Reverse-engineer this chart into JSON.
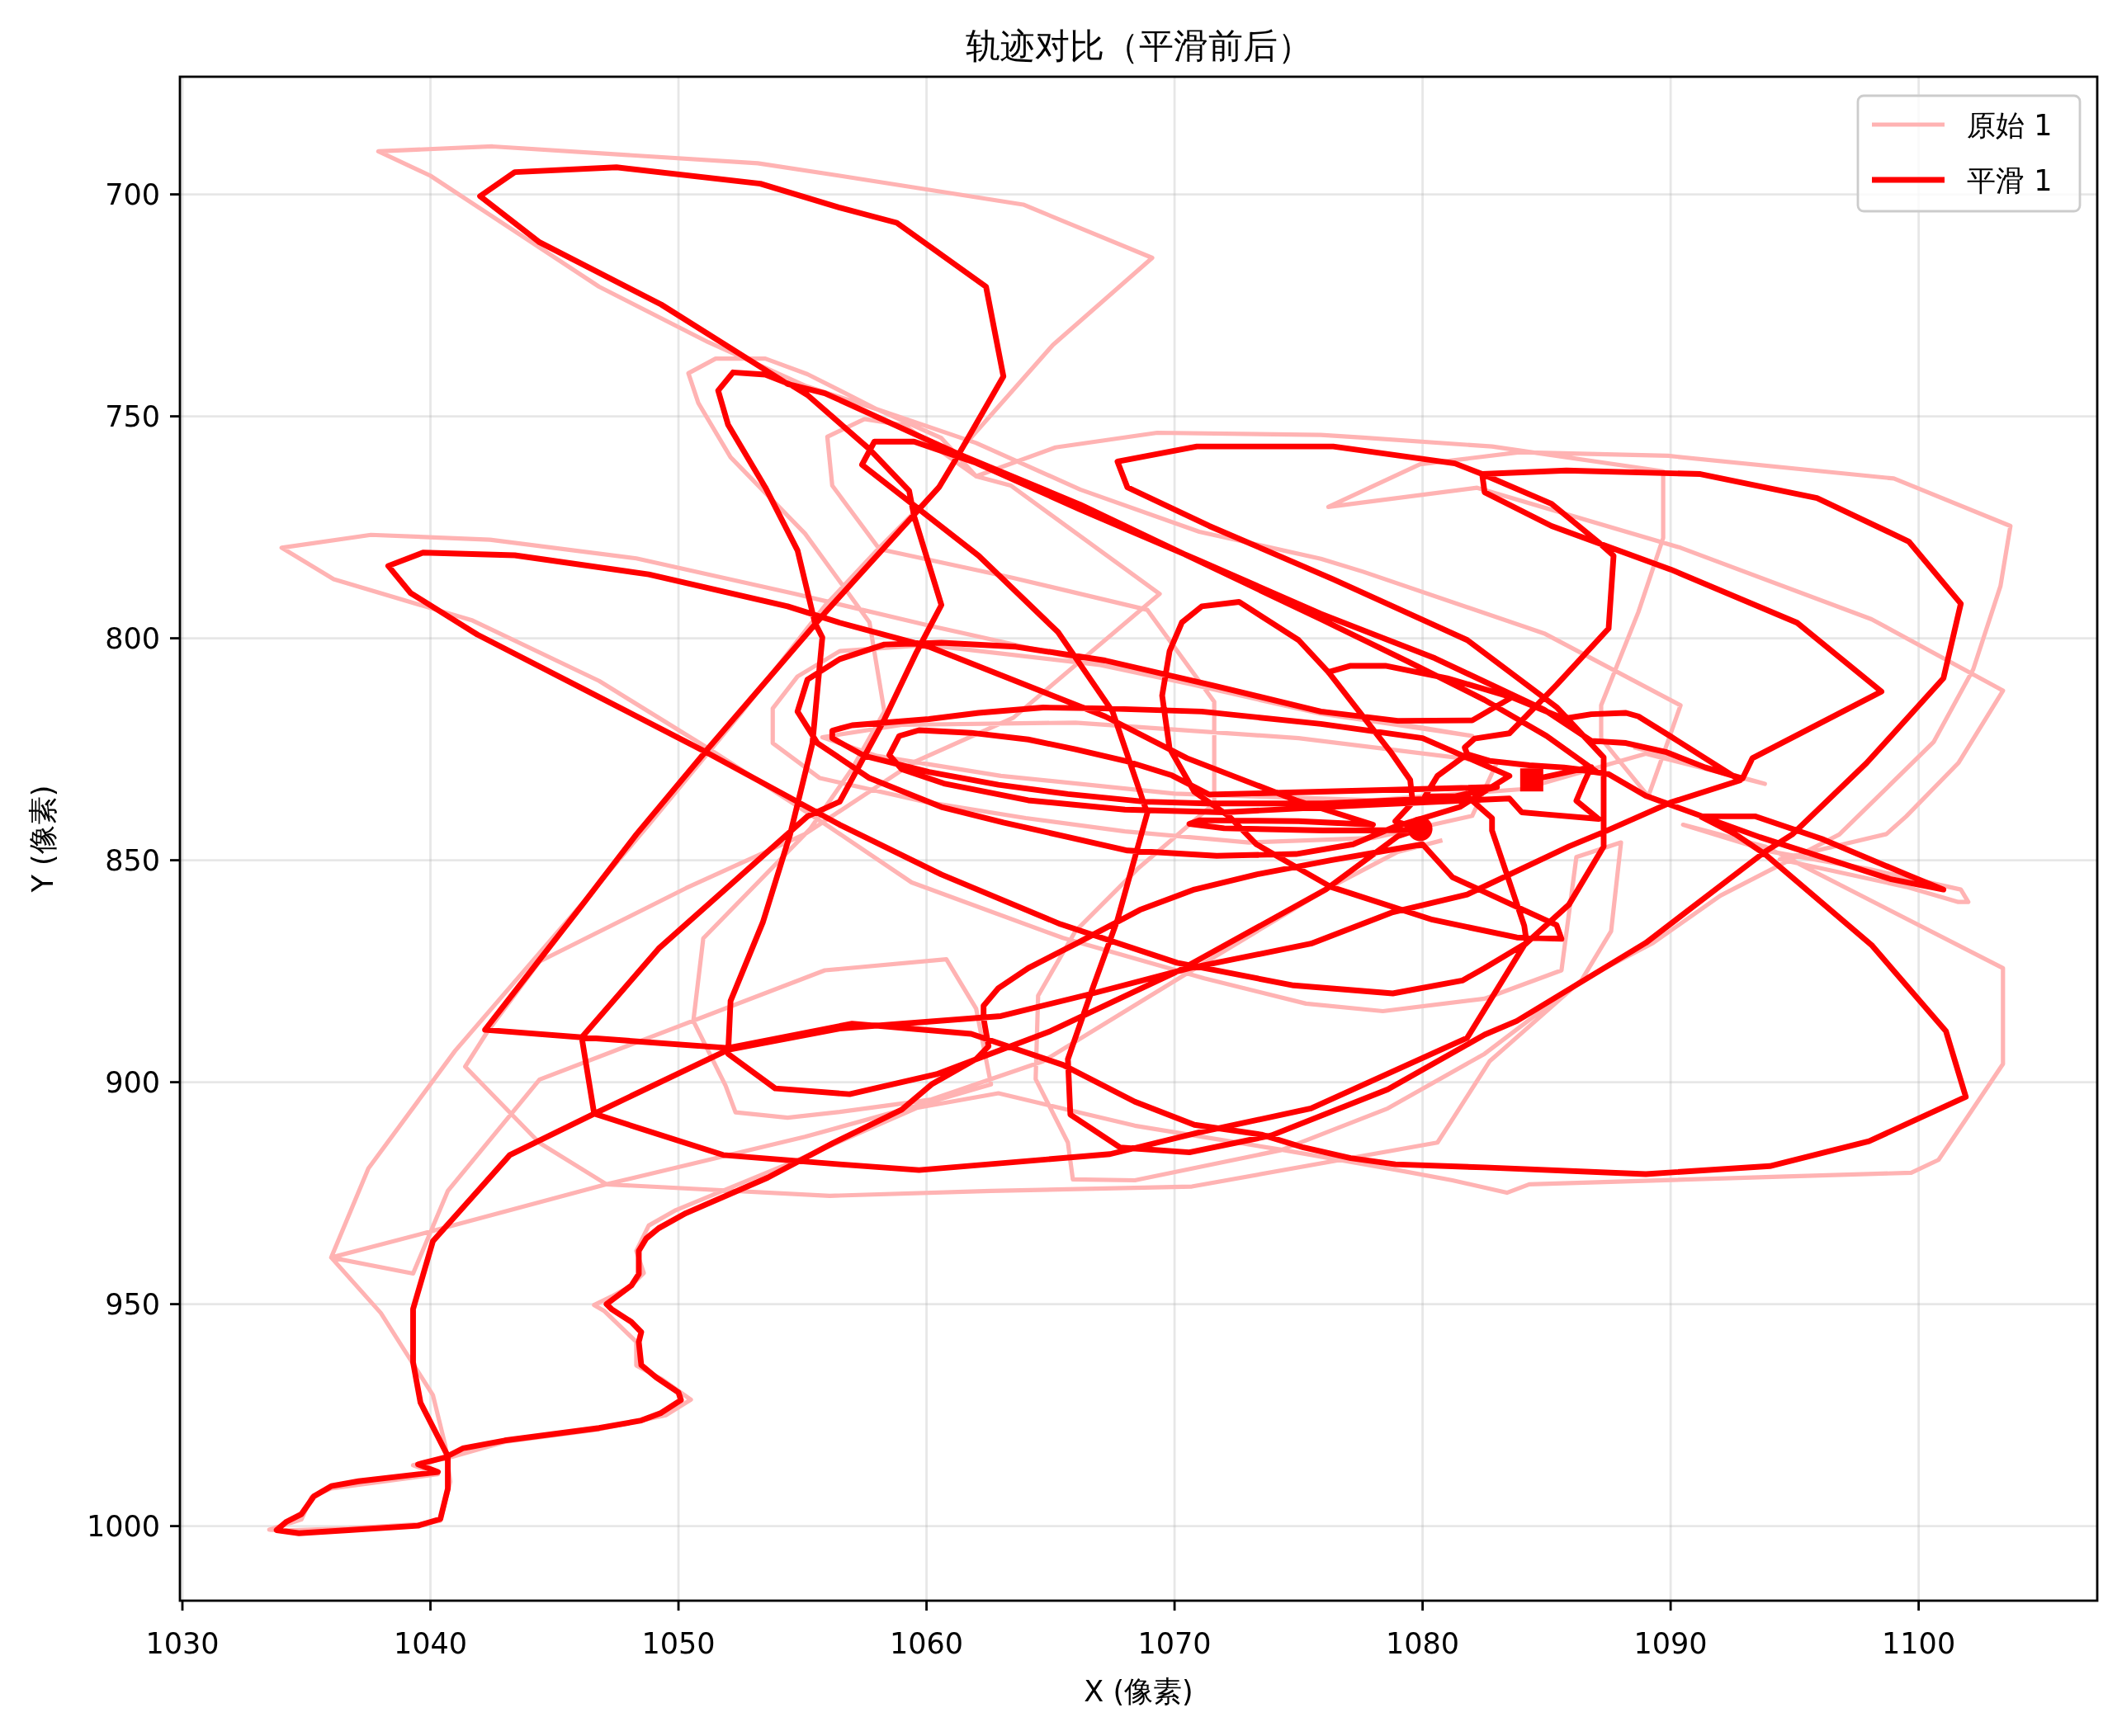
{
  "chart_data": {
    "type": "line",
    "title": "轨迹对比（平滑前后）",
    "xlabel": "X (像素)",
    "ylabel": "Y (像素)",
    "xlim": [
      1029.9,
      1107.2
    ],
    "ylim": [
      1016.8,
      673.5
    ],
    "xticks": [
      1030,
      1040,
      1050,
      1060,
      1070,
      1080,
      1090,
      1100
    ],
    "yticks": [
      700,
      750,
      800,
      850,
      900,
      950,
      1000
    ],
    "grid": true,
    "legend": "top right",
    "series": [
      {
        "name": "原始 1",
        "color": "#ffb3b3",
        "x": [
          1080.8,
          1079.0,
          1076.3,
          1070.2,
          1064.7,
          1060.2,
          1056.5,
          1054.4,
          1052.3,
          1051.9,
          1050.6,
          1051.0,
          1055.3,
          1057.0,
          1058.3,
          1057.7,
          1055.1,
          1052.1,
          1050.8,
          1050.4,
          1051.5,
          1053.5,
          1055.2,
          1058.0,
          1062.0,
          1066.2,
          1071.0,
          1075.9,
          1077.6,
          1084.9,
          1090.4,
          1089.9,
          1089.1,
          1087.2,
          1087.2,
          1088.7,
          1089.7,
          1089.7,
          1082.8,
          1077.6,
          1075.9,
          1069.3,
          1065.2,
          1062.0,
          1060.6,
          1058.0,
          1055.1,
          1051.2,
          1046.8,
          1040.0,
          1037.9,
          1042.5,
          1053.2,
          1056.5,
          1063.9,
          1069.1,
          1065.1,
          1061.4,
          1060.5,
          1058.1,
          1055.9,
          1052.5,
          1048.8,
          1046.2,
          1041.0,
          1037.5,
          1036.0,
          1040.1,
          1047.1,
          1055.1,
          1060.2,
          1062.6,
          1062.0,
          1060.8,
          1055.9,
          1044.4,
          1040.7,
          1039.3,
          1036.0,
          1038.0,
          1040.1,
          1040.6,
          1040.8,
          1040.4,
          1039.5,
          1036.7,
          1034.0,
          1033.5,
          1034.8,
          1035.2,
          1036.0,
          1040.3,
          1039.3,
          1040.8,
          1043.0,
          1046.8,
          1049.5,
          1050.5,
          1049.3,
          1048.3,
          1048.3,
          1047.0,
          1046.6,
          1047.3,
          1048.1,
          1048.6,
          1048.3,
          1048.8,
          1049.9,
          1054.9,
          1059.6,
          1062.9,
          1068.4,
          1074.4,
          1078.9,
          1081.2,
          1083.4,
          1084.3,
          1099.7,
          1100.8,
          1101.9,
          1103.4,
          1103.4,
          1093.8,
          1090.5,
          1094.0,
          1098.0,
          1101.7,
          1102.0,
          1101.6,
          1099.5,
          1094.4,
          1098.7,
          1099.5,
          1101.6,
          1103.4,
          1098.1,
          1090.4,
          1082.2,
          1076.2,
          1079.9,
          1083.9,
          1089.9,
          1099.0,
          1103.7,
          1103.3,
          1102.2,
          1100.6,
          1096.8,
          1092.0,
          1089.3,
          1086.4,
          1082.7,
          1081.2,
          1080.6,
          1070.7,
          1062.6,
          1056.1,
          1047.1,
          1044.4,
          1041.4,
          1042.3,
          1044.4,
          1050.3,
          1055.1,
          1059.5,
          1063.5,
          1069.4,
          1063.4,
          1062.0,
          1059.1,
          1057.5,
          1056.0,
          1056.2,
          1058.1,
          1063.5,
          1068.9,
          1071.6,
          1071.6,
          1068.5,
          1066.0,
          1064.5,
          1064.4,
          1065.7,
          1065.9,
          1068.4,
          1074.3,
          1078.6,
          1082.5,
          1086.4,
          1087.6,
          1088.0,
          1086.2,
          1085.6,
          1082.5,
          1078.4,
          1075.3,
          1071.2,
          1065.5,
          1059.4,
          1055.9,
          1051.2,
          1046.8,
          1041.7,
          1036.1,
          1034.0,
          1037.6,
          1042.4,
          1048.3,
          1054.7,
          1060.0,
          1068.0,
          1075.9,
          1082.0,
          1075.0,
          1067.0,
          1060.0,
          1056.5,
          1054.8,
          1053.8,
          1053.8,
          1055.7,
          1060.0,
          1064.0,
          1068.0,
          1073.0,
          1078.0,
          1082.0,
          1083.0,
          1075.0,
          1066.0,
          1059.0,
          1055.8,
          1058.0,
          1063.0,
          1070.0,
          1078.0,
          1084.0,
          1089.0,
          1093.8,
          1088.5
        ],
        "values": [
          845.5,
          848.1,
          856.0,
          876.5,
          895.3,
          903.9,
          906.7,
          908.0,
          906.8,
          900.8,
          886.2,
          867.6,
          843.0,
          829.4,
          816.5,
          796.4,
          776.4,
          759.2,
          747.0,
          740.3,
          737.0,
          737.0,
          740.5,
          748.4,
          756.0,
          766.5,
          776.0,
          782.1,
          785.0,
          798.9,
          815.1,
          823.1,
          835.6,
          822.6,
          815.1,
          794.1,
          777.4,
          762.4,
          756.8,
          754.8,
          754.2,
          753.7,
          757.0,
          763.5,
          754.9,
          748.4,
          743.1,
          733.3,
          720.8,
          695.8,
          690.3,
          689.2,
          693.0,
          695.8,
          702.3,
          714.3,
          733.9,
          757.3,
          766.0,
          779.6,
          792.7,
          817.0,
          842.0,
          859.2,
          892.9,
          919.4,
          939.5,
          933.5,
          923.0,
          912.3,
          904.4,
          900.5,
          883.4,
          872.3,
          874.8,
          899.4,
          924.5,
          943.1,
          939.5,
          952.0,
          970.5,
          981.9,
          990.0,
          998.8,
          999.6,
          1000.5,
          1001.0,
          1000.8,
          998.5,
          993.5,
          991.5,
          988.3,
          986.3,
          984.5,
          981.0,
          978.2,
          975.0,
          971.5,
          966.8,
          963.8,
          958.5,
          951.5,
          950.2,
          948.3,
          945.8,
          943.0,
          938.0,
          932.3,
          928.8,
          917.3,
          905.8,
          902.5,
          909.8,
          915.3,
          919.7,
          922.1,
          924.9,
          923.0,
          920.4,
          917.5,
          908.4,
          895.9,
          874.3,
          846.9,
          842.0,
          848.0,
          852.0,
          856.6,
          859.4,
          859.4,
          856.0,
          849.8,
          844.1,
          840.1,
          828.1,
          811.8,
          795.7,
          779.6,
          766.1,
          770.4,
          760.8,
          758.1,
          758.9,
          764.0,
          774.7,
          788.2,
          807.0,
          823.4,
          844.2,
          858.0,
          868.6,
          877.1,
          895.3,
          908.4,
          913.6,
          923.5,
          924.5,
          925.6,
          923.0,
          913.7,
          896.5,
          888.6,
          872.8,
          856.3,
          844.1,
          827.9,
          817.9,
          790.0,
          765.6,
          763.5,
          752.0,
          750.6,
          754.6,
          765.6,
          779.9,
          786.4,
          793.6,
          814.3,
          837.2,
          852.0,
          866.0,
          880.5,
          899.3,
          913.6,
          921.9,
          922.1,
          915.3,
          905.9,
          893.6,
          877.1,
          866.0,
          846.0,
          849.3,
          874.8,
          881.2,
          884.0,
          882.3,
          876.6,
          867.5,
          855.0,
          841.8,
          824.8,
          809.6,
          796.0,
          786.7,
          779.6,
          776.7,
          777.8,
          782.0,
          790.0,
          797.0,
          807.0,
          817.0,
          822.0,
          815.5,
          806.0,
          801.5,
          802.9,
          808.6,
          815.8,
          823.6,
          831.5,
          836.9,
          840.5,
          843.5,
          846.0,
          845.0,
          840.0,
          828.0,
          822.5,
          819.0,
          819.5,
          822.3,
          826.5,
          831.0,
          835.0,
          836.5,
          834.0,
          826.0,
          832.8,
          824.5
        ]
      },
      {
        "name": "平滑 1",
        "color": "#ff0000",
        "x": [
          1079.9,
          1079.0,
          1076.1,
          1070.2,
          1065.0,
          1060.4,
          1056.9,
          1053.9,
          1052.0,
          1052.1,
          1053.4,
          1054.5,
          1055.4,
          1055.8,
          1055.5,
          1054.8,
          1053.5,
          1052.0,
          1051.6,
          1052.2,
          1053.5,
          1054.5,
          1055.2,
          1057.7,
          1059.3,
          1059.5,
          1060.6,
          1059.6,
          1058.3,
          1056.5,
          1055.2,
          1049.2,
          1046.1,
          1046.6,
          1051.8,
          1056.5,
          1059.7,
          1067.4,
          1071.0,
          1075.5,
          1081.8,
          1084.1,
          1085.9,
          1087.3,
          1087.3,
          1085.4,
          1081.8,
          1076.4,
          1071.4,
          1068.1,
          1067.7,
          1070.9,
          1076.4,
          1081.3,
          1082.4,
          1085.8,
          1091.2,
          1095.9,
          1099.6,
          1101.7,
          1101.0,
          1097.9,
          1094.9,
          1093.8,
          1089.0,
          1083.8,
          1082.5,
          1078.6,
          1073.9,
          1070.6,
          1067.8,
          1065.8,
          1065.7,
          1066.7,
          1067.7,
          1068.9,
          1067.5,
          1065.3,
          1062.1,
          1057.4,
          1057.9,
          1059.5,
          1062.0,
          1066.2,
          1071.0,
          1075.9,
          1080.5,
          1084.9,
          1086.8,
          1088.2,
          1089.8,
          1091.4,
          1092.9,
          1093.3,
          1098.5,
          1095.1,
          1090.0,
          1085.2,
          1082.5,
          1082.4,
          1085.2,
          1087.1,
          1087.7,
          1087.5,
          1085.4,
          1083.5,
          1082.1,
          1081.7,
          1081.8,
          1082.7,
          1084.3,
          1085.7,
          1087.5,
          1089.0,
          1093.6,
          1098.9,
          1101.0,
          1099.5,
          1096.1,
          1093.4,
          1091.2,
          1092.6,
          1093.8,
          1098.1,
          1101.1,
          1101.9,
          1098.0,
          1094.0,
          1089.0,
          1082.5,
          1078.9,
          1077.1,
          1075.2,
          1073.5,
          1070.8,
          1068.4,
          1065.5,
          1061.8,
          1057.0,
          1052.0,
          1046.1,
          1042.2,
          1046.2,
          1048.3,
          1051.2,
          1055.9,
          1060.5,
          1061.2,
          1063.1,
          1062.4,
          1058.8,
          1056.5,
          1053.3,
          1047.5,
          1043.4,
          1042.0,
          1044.4,
          1049.3,
          1054.4,
          1055.9,
          1061.3,
          1066.2,
          1075.9,
          1079.4,
          1082.5,
          1085.0,
          1087.0,
          1085.7,
          1084.3,
          1082.7,
          1081.8,
          1080.6,
          1080.1,
          1081.8,
          1082.8,
          1082.8,
          1084.1,
          1084.2,
          1082.5,
          1081.6,
          1078.8,
          1074.8,
          1070.1,
          1065.4,
          1060.6,
          1056.5,
          1051.2,
          1046.3,
          1041.9,
          1039.2,
          1038.3,
          1039.7,
          1043.4,
          1048.8,
          1054.4,
          1056.5,
          1060.1,
          1067.2,
          1070.5,
          1074.9,
          1078.0,
          1075.0,
          1071.0,
          1070.6,
          1072.0,
          1076.0,
          1080.0,
          1078.9,
          1079.6,
          1079.5,
          1078.7,
          1076.2,
          1075.0,
          1072.6,
          1071.1,
          1070.3,
          1069.8,
          1069.5,
          1069.8,
          1070.8,
          1072.2,
          1073.3,
          1076.3,
          1080.4,
          1083.8,
          1085.6,
          1085.4,
          1083.6,
          1081.2,
          1080.0,
          1076.3,
          1073.3,
          1070.8,
          1068.6,
          1066.1,
          1064.1,
          1062.9,
          1062.3,
          1062.3,
          1062.5,
          1062.0,
          1060.2,
          1059.0,
          1056.2,
          1053.6,
          1050.3,
          1049.2,
          1048.7,
          1048.4,
          1048.4,
          1048.1,
          1047.5,
          1047.1,
          1047.3,
          1048.1,
          1048.5,
          1048.4,
          1048.5,
          1049.1,
          1050.0,
          1050.1,
          1049.3,
          1048.5,
          1046.8,
          1043.0,
          1041.3,
          1040.6,
          1039.5,
          1040.3,
          1037.1,
          1036.0,
          1035.3,
          1034.8,
          1034.2,
          1033.8,
          1034.7,
          1036.7,
          1039.5,
          1040.4,
          1040.7,
          1040.7,
          1039.6,
          1039.3,
          1039.3,
          1040.1,
          1043.2,
          1046.6,
          1052.0,
          1056.5,
          1063.0,
          1066.7,
          1070.6,
          1075.5,
          1078.8,
          1081.8,
          1085.9,
          1087.4,
          1090.0,
          1092.8,
          1090.0,
          1088.7,
          1088.2,
          1086.8,
          1085.7,
          1083.6,
          1081.0,
          1078.5,
          1077.1,
          1076.2,
          1077.1,
          1078.5,
          1081.0,
          1083.6,
          1082.0,
          1079.0,
          1075.9,
          1071.6,
          1067.2,
          1063.6,
          1060.6,
          1058.3,
          1056.5,
          1055.2,
          1054.8,
          1055.6,
          1057.7,
          1060.6,
          1063.1,
          1068.1,
          1071.7,
          1074.9,
          1077.2,
          1078.9,
          1081.5,
          1083.5,
          1080.0,
          1075.9,
          1071.1,
          1067.2,
          1064.7,
          1062.1,
          1060.1,
          1057.0,
          1056.2,
          1056.2,
          1057.5,
          1060.1,
          1062.9,
          1065.7,
          1068.8,
          1071.3,
          1076.0,
          1081.0,
          1083.0,
          1071.4,
          1069.9,
          1068.0,
          1066.0,
          1064.1,
          1061.8,
          1059.7,
          1058.9,
          1058.5,
          1059.0,
          1060.7,
          1064.1,
          1068.0,
          1072.0,
          1078.0,
          1081.8,
          1083.5,
          1084.0,
          1085.0,
          1087.1,
          1086.2,
          1086.5,
          1086.8,
          1084.4
        ],
        "values": [
          842.9,
          844.6,
          856.6,
          874.8,
          888.5,
          898.2,
          902.7,
          901.4,
          893.6,
          881.7,
          864.0,
          844.2,
          823.7,
          799.8,
          796.5,
          780.2,
          766.0,
          751.9,
          744.2,
          740.1,
          740.6,
          742.8,
          745.2,
          757.4,
          766.8,
          772.5,
          792.5,
          803.1,
          818.3,
          836.8,
          840.1,
          869.9,
          889.9,
          907.1,
          916.4,
          918.5,
          919.8,
          916.2,
          911.3,
          905.9,
          890.0,
          869.1,
          860.0,
          846.9,
          826.8,
          815.5,
          800.4,
          786.7,
          774.7,
          766.0,
          760.2,
          756.8,
          756.8,
          760.6,
          763.0,
          762.2,
          763.0,
          768.4,
          778.2,
          792.2,
          809.0,
          828.1,
          844.2,
          848.1,
          868.6,
          886.2,
          889.3,
          901.6,
          912.0,
          915.8,
          914.7,
          907.3,
          894.8,
          878.8,
          863.4,
          839.4,
          816.5,
          798.6,
          781.4,
          760.9,
          755.7,
          755.7,
          760.5,
          771.0,
          782.5,
          794.5,
          804.5,
          816.1,
          823.1,
          823.6,
          825.6,
          829.1,
          831.6,
          827.0,
          812.0,
          796.5,
          784.5,
          774.7,
          767.1,
          763.0,
          769.7,
          778.4,
          781.4,
          797.8,
          810.5,
          821.4,
          822.6,
          824.6,
          826.1,
          827.6,
          828.6,
          829.1,
          830.6,
          835.5,
          844.8,
          854.3,
          856.6,
          853.2,
          845.2,
          840.1,
          840.1,
          844.1,
          848.6,
          869.1,
          888.5,
          903.3,
          913.3,
          918.9,
          920.7,
          919.2,
          918.5,
          917.1,
          914.7,
          911.8,
          909.6,
          904.4,
          896.1,
          889.1,
          886.8,
          892.3,
          889.9,
          888.2,
          859.5,
          844.2,
          824.8,
          794.3,
          766.0,
          759.5,
          741.0,
          720.8,
          706.4,
          703.0,
          697.6,
          693.9,
          695.0,
          700.4,
          710.8,
          724.8,
          742.7,
          744.8,
          758.5,
          769.9,
          795.7,
          805.2,
          813.9,
          822.0,
          830.0,
          829.1,
          828.6,
          827.6,
          826.1,
          831.0,
          835.6,
          835.6,
          840.5,
          843.3,
          864.8,
          868.6,
          874.3,
          877.1,
          880.0,
          878.2,
          873.1,
          864.4,
          853.2,
          842.0,
          825.9,
          811.8,
          799.2,
          789.8,
          783.7,
          780.7,
          781.3,
          785.6,
          792.8,
          796.5,
          801.9,
          817.6,
          827.0,
          836.5,
          842.0,
          841.2,
          841.0,
          841.8,
          842.8,
          843.3,
          843.2,
          841.2,
          837.0,
          831.9,
          825.5,
          807.6,
          800.4,
          791.8,
          792.8,
          796.4,
          802.9,
          812.9,
          824.8,
          834.6,
          840.1,
          846.4,
          856.0,
          863.4,
          867.4,
          867.7,
          864.6,
          860.0,
          853.8,
          846.4,
          850.0,
          853.2,
          856.6,
          861.2,
          868.6,
          874.3,
          878.8,
          882.8,
          885.6,
          891.9,
          894.8,
          900.5,
          906.2,
          913.8,
          921.5,
          929.5,
          932.9,
          935.2,
          938.0,
          943.2,
          945.8,
          948.3,
          950.0,
          951.1,
          954.0,
          956.3,
          958.5,
          963.7,
          966.5,
          969.9,
          971.6,
          974.5,
          976.2,
          977.9,
          980.7,
          982.5,
          984.5,
          986.1,
          987.8,
          989.9,
          991.0,
          993.3,
          997.3,
          999.0,
          1000.9,
          1001.6,
          1000.9,
          999.9,
          998.4,
          991.6,
          984.2,
          972.2,
          963.1,
          951.1,
          935.8,
          916.4,
          907.1,
          892.7,
          887.9,
          885.1,
          880.0,
          874.3,
          868.8,
          861.7,
          857.7,
          846.9,
          843.4,
          837.0,
          832.0,
          822.1,
          817.6,
          816.8,
          817.1,
          818.1,
          813.3,
          809.0,
          806.2,
          806.2,
          807.6,
          806.2,
          806.2,
          809.0,
          813.3,
          818.5,
          818.6,
          816.5,
          810.7,
          805.0,
          801.9,
          801.0,
          801.4,
          804.7,
          809.3,
          816.5,
          823.6,
          831.5,
          838.0,
          841.5,
          847.8,
          849.0,
          848.6,
          846.4,
          842.4,
          838.0,
          831.0,
          822.5,
          819.3,
          816.5,
          815.8,
          815.6,
          816.8,
          818.2,
          819.6,
          820.8,
          822.5,
          826.5,
          830.1,
          833.0,
          835.1,
          836.8,
          837.2,
          837.2,
          836.0,
          833.5,
          835.2,
          830.9,
          827.6,
          825.0,
          822.8,
          821.3,
          820.7,
          822.0,
          826.3,
          829.5,
          832.7,
          836.5,
          838.6,
          839.2,
          837.5,
          836.5,
          836.1,
          839.2,
          839.7,
          840.7,
          836.6,
          832.6,
          829.0,
          831.9
        ]
      },
      {
        "type": "scatter",
        "marker": "circle",
        "color": "#ff0000",
        "x": [
          1079.9
        ],
        "values": [
          842.9
        ]
      },
      {
        "type": "scatter",
        "marker": "square",
        "color": "#ff0000",
        "x": [
          1084.4
        ],
        "values": [
          831.9
        ]
      }
    ]
  }
}
